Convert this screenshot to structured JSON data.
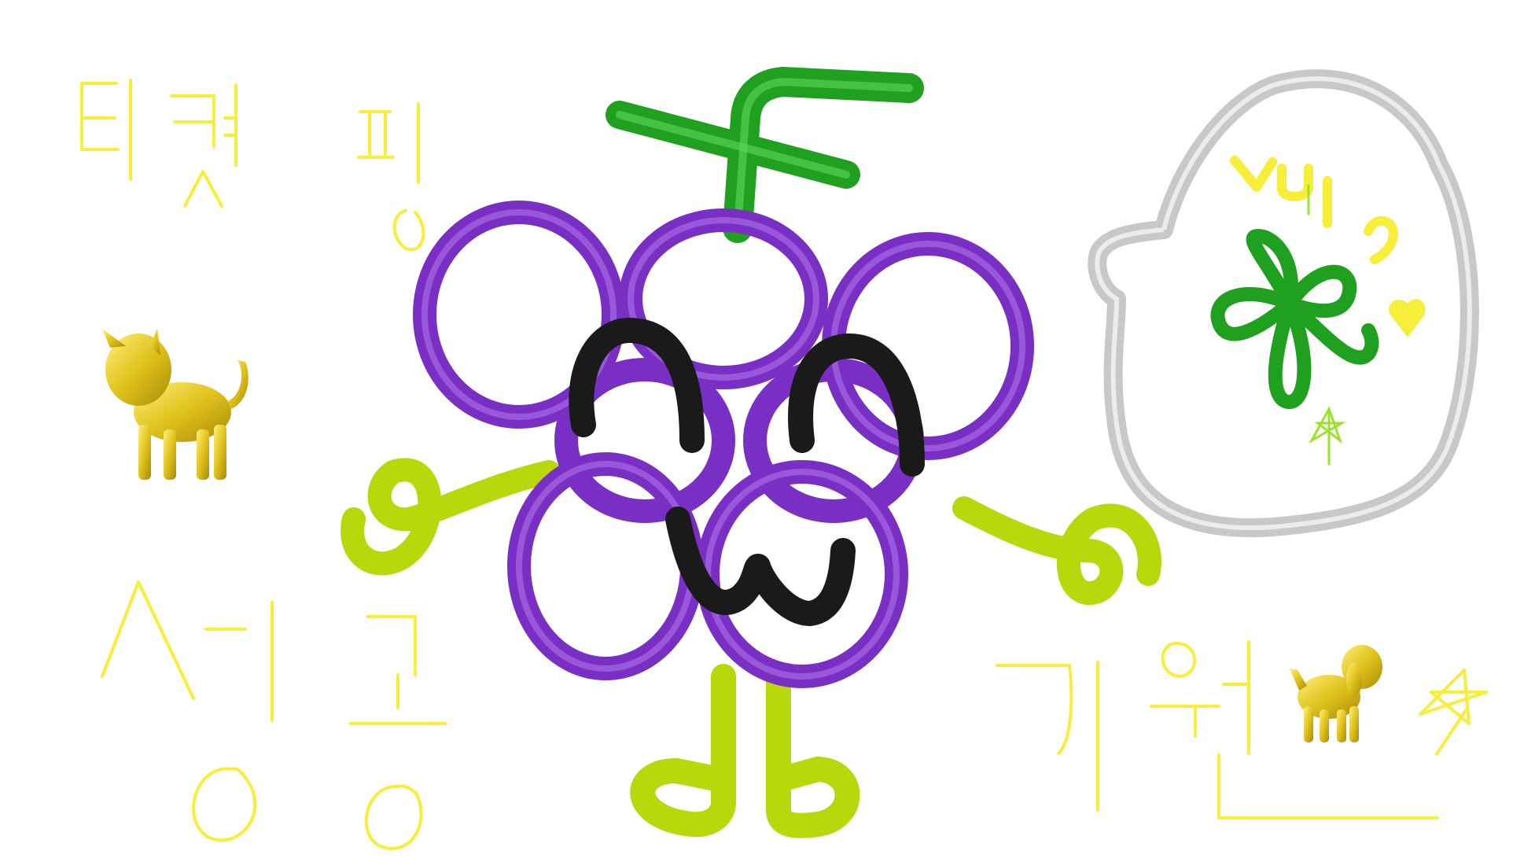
{
  "scene": {
    "background": "#ffffff",
    "handwriting_color": "#f7ee3a",
    "grape_purple": "#7a2fc4",
    "stem_green": "#1fa11f",
    "arm_leg_lime": "#b8d80c",
    "face_black": "#1a1a1a",
    "bubble_silver": "#c8c8c8",
    "figure_gold": "#d8b81e"
  },
  "text": {
    "ticket_line": "티켓팅",
    "success_line": "성공",
    "wish_line": "기원",
    "bubble_text": "VUI"
  },
  "icons": {
    "cat": "cat-figure-icon",
    "dog": "dog-figure-icon",
    "clover": "clover-icon",
    "star": "star-doodle-icon",
    "heart": "heart-icon"
  }
}
